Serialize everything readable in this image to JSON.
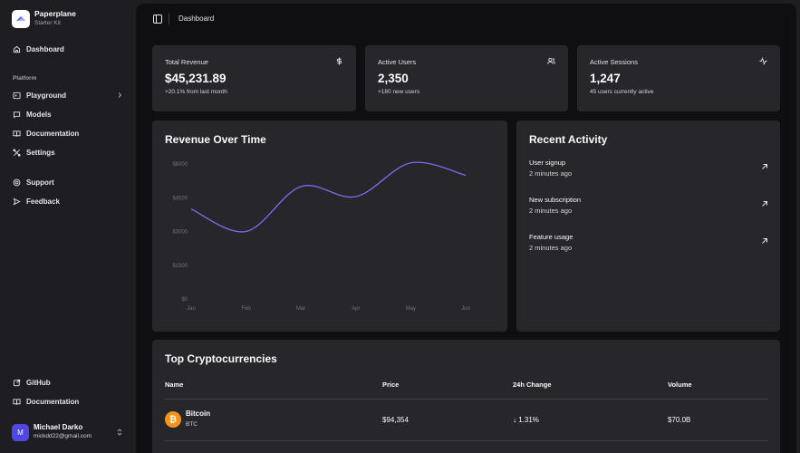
{
  "brand": {
    "name": "Paperplane",
    "subtitle": "Starter Kit"
  },
  "sidebar": {
    "dashboard": "Dashboard",
    "section_label": "Platform",
    "platform_items": [
      {
        "label": "Playground",
        "icon": "terminal-icon",
        "has_chevron": true
      },
      {
        "label": "Models",
        "icon": "message-icon"
      },
      {
        "label": "Documentation",
        "icon": "book-icon"
      },
      {
        "label": "Settings",
        "icon": "tools-icon"
      }
    ],
    "secondary_items": [
      {
        "label": "Support",
        "icon": "lifebuoy-icon"
      },
      {
        "label": "Feedback",
        "icon": "send-icon"
      }
    ],
    "footer_items": [
      {
        "label": "GitHub",
        "icon": "external-link-icon"
      },
      {
        "label": "Documentation",
        "icon": "book-icon"
      }
    ],
    "user": {
      "initial": "M",
      "name": "Michael Darko",
      "email": "mickdd22@gmail.com"
    }
  },
  "header": {
    "breadcrumb": "Dashboard"
  },
  "stats": [
    {
      "title": "Total Revenue",
      "value": "$45,231.89",
      "sub": "+20.1% from last month",
      "icon": "dollar-icon"
    },
    {
      "title": "Active Users",
      "value": "2,350",
      "sub": "+180 new users",
      "icon": "users-icon"
    },
    {
      "title": "Active Sessions",
      "value": "1,247",
      "sub": "45 users currently active",
      "icon": "activity-icon"
    }
  ],
  "revenue_card": {
    "title": "Revenue Over Time"
  },
  "chart_data": {
    "type": "line",
    "title": "Revenue Over Time",
    "categories": [
      "Jan",
      "Feb",
      "Mar",
      "Apr",
      "May",
      "Jun"
    ],
    "series": [
      {
        "values": [
          4000,
          3000,
          5000,
          4550,
          6050,
          5500
        ]
      }
    ],
    "y_ticks": [
      "$0",
      "$1500",
      "$3000",
      "$4500",
      "$6000"
    ],
    "ylim": [
      0,
      6000
    ],
    "line_color": "#7c6cf0",
    "grid": false
  },
  "activity": {
    "title": "Recent Activity",
    "items": [
      {
        "title": "User signup",
        "time": "2 minutes ago"
      },
      {
        "title": "New subscription",
        "time": "2 minutes ago"
      },
      {
        "title": "Feature usage",
        "time": "2 minutes ago"
      }
    ]
  },
  "crypto": {
    "title": "Top Cryptocurrencies",
    "columns": [
      "Name",
      "Price",
      "24h Change",
      "Volume"
    ],
    "rows": [
      {
        "name": "Bitcoin",
        "symbol": "BTC",
        "icon_glyph": "₿",
        "price": "$94,354",
        "change": "↓ 1.31%",
        "volume": "$70.0B"
      }
    ]
  },
  "colors": {
    "accent": "#7c6cf0",
    "bitcoin": "#f7931a",
    "avatar": "#4f46e5"
  }
}
